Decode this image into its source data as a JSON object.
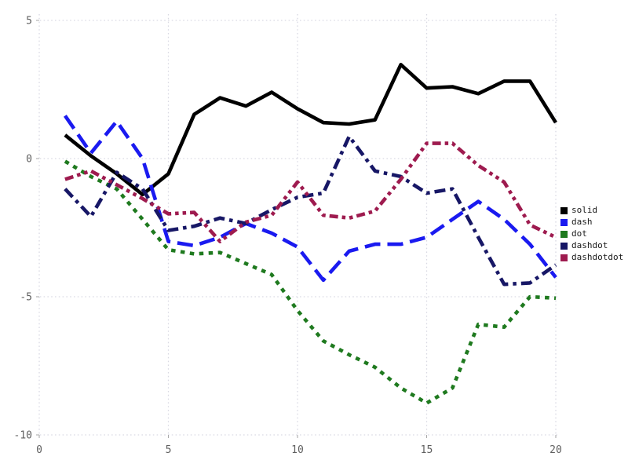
{
  "chart_data": {
    "type": "line",
    "title": "",
    "xlabel": "",
    "ylabel": "",
    "x": [
      1,
      2,
      3,
      4,
      5,
      6,
      7,
      8,
      9,
      10,
      11,
      12,
      13,
      14,
      15,
      16,
      17,
      18,
      19,
      20
    ],
    "series": [
      {
        "name": "solid",
        "color": "#000000",
        "values": [
          0.85,
          0.1,
          -0.55,
          -1.3,
          -0.55,
          1.6,
          2.2,
          1.9,
          2.4,
          1.8,
          1.3,
          1.25,
          1.4,
          3.4,
          2.55,
          2.6,
          2.35,
          2.8,
          2.8,
          1.3
        ]
      },
      {
        "name": "dash",
        "color": "#1a1af0",
        "values": [
          1.55,
          0.2,
          1.35,
          0.0,
          -3.0,
          -3.15,
          -2.85,
          -2.35,
          -2.7,
          -3.2,
          -4.4,
          -3.35,
          -3.1,
          -3.1,
          -2.85,
          -2.2,
          -1.55,
          -2.2,
          -3.1,
          -4.3
        ]
      },
      {
        "name": "dot",
        "color": "#1f7a1f",
        "values": [
          -0.1,
          -0.65,
          -1.1,
          -2.2,
          -3.3,
          -3.45,
          -3.4,
          -3.8,
          -4.2,
          -5.5,
          -6.6,
          -7.1,
          -7.55,
          -8.3,
          -8.85,
          -8.3,
          -6.0,
          -6.1,
          -5.0,
          -5.05
        ]
      },
      {
        "name": "dashdot",
        "color": "#171766",
        "values": [
          -1.1,
          -2.1,
          -0.5,
          -1.1,
          -2.6,
          -2.45,
          -2.15,
          -2.35,
          -1.85,
          -1.4,
          -1.25,
          0.8,
          -0.45,
          -0.65,
          -1.25,
          -1.1,
          -2.85,
          -4.55,
          -4.5,
          -3.85
        ]
      },
      {
        "name": "dashdotdot",
        "color": "#9e1b4f",
        "values": [
          -0.75,
          -0.45,
          -0.95,
          -1.45,
          -2.0,
          -1.95,
          -3.0,
          -2.3,
          -2.05,
          -0.85,
          -2.05,
          -2.15,
          -1.9,
          -0.75,
          0.55,
          0.55,
          -0.25,
          -0.85,
          -2.4,
          -2.85
        ]
      }
    ],
    "xticks": [
      0,
      5,
      10,
      15,
      20
    ],
    "yticks": [
      5,
      0,
      -5,
      -10
    ],
    "xtick_labels": [
      "0",
      "5",
      "10",
      "15",
      "20"
    ],
    "ytick_labels": [
      "5",
      "0",
      "-5",
      "-10"
    ],
    "xlim": [
      0,
      20
    ],
    "ylim": [
      -10,
      5
    ],
    "grid": true,
    "grid_color": "#d9d9e3",
    "tick_color": "#aaaaaa",
    "label_color": "#606060",
    "legend_position": "right"
  }
}
